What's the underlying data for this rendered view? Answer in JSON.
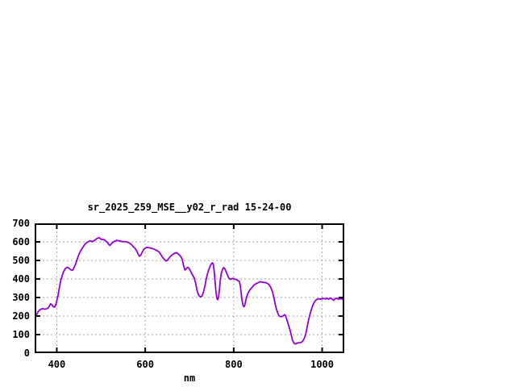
{
  "window": {
    "background_color": "#ffffff"
  },
  "chart_data": {
    "type": "line",
    "title": "sr_2025_259_MSE__y02_r_rad 15-24-00",
    "xlabel": "nm",
    "ylabel": "",
    "xlim": [
      350,
      1050
    ],
    "ylim": [
      0,
      700
    ],
    "x_ticks": [
      400,
      600,
      800,
      1000
    ],
    "y_ticks": [
      0,
      100,
      200,
      300,
      400,
      500,
      600,
      700
    ],
    "grid": true,
    "grid_style": "dashed",
    "legend_position": "none",
    "line_color": "#9400d3",
    "grid_color": "#a6a6a6",
    "border_color": "#000000",
    "text_color": "#000000",
    "series": [
      {
        "name": "sr_2025_259_MSE__y02_r_rad",
        "points": [
          [
            350,
            190
          ],
          [
            353,
            201
          ],
          [
            356,
            216
          ],
          [
            359,
            227
          ],
          [
            362,
            234
          ],
          [
            365,
            238
          ],
          [
            368,
            240
          ],
          [
            371,
            238
          ],
          [
            374,
            237
          ],
          [
            377,
            240
          ],
          [
            380,
            243
          ],
          [
            383,
            253
          ],
          [
            386,
            266
          ],
          [
            389,
            261
          ],
          [
            392,
            251
          ],
          [
            395,
            248
          ],
          [
            398,
            262
          ],
          [
            400,
            282
          ],
          [
            403,
            312
          ],
          [
            406,
            355
          ],
          [
            409,
            392
          ],
          [
            412,
            416
          ],
          [
            415,
            438
          ],
          [
            418,
            451
          ],
          [
            421,
            460
          ],
          [
            424,
            463
          ],
          [
            427,
            459
          ],
          [
            430,
            452
          ],
          [
            433,
            448
          ],
          [
            436,
            448
          ],
          [
            439,
            461
          ],
          [
            442,
            478
          ],
          [
            445,
            497
          ],
          [
            448,
            520
          ],
          [
            451,
            538
          ],
          [
            454,
            552
          ],
          [
            457,
            563
          ],
          [
            460,
            575
          ],
          [
            463,
            585
          ],
          [
            466,
            592
          ],
          [
            469,
            598
          ],
          [
            472,
            602
          ],
          [
            475,
            606
          ],
          [
            478,
            604
          ],
          [
            481,
            601
          ],
          [
            484,
            606
          ],
          [
            487,
            611
          ],
          [
            490,
            617
          ],
          [
            493,
            621
          ],
          [
            496,
            622
          ],
          [
            499,
            617
          ],
          [
            502,
            612
          ],
          [
            505,
            614
          ],
          [
            508,
            610
          ],
          [
            511,
            604
          ],
          [
            514,
            598
          ],
          [
            517,
            588
          ],
          [
            520,
            581
          ],
          [
            523,
            589
          ],
          [
            526,
            596
          ],
          [
            529,
            601
          ],
          [
            532,
            605
          ],
          [
            535,
            608
          ],
          [
            538,
            607
          ],
          [
            541,
            605
          ],
          [
            545,
            603
          ],
          [
            549,
            601
          ],
          [
            553,
            602
          ],
          [
            557,
            600
          ],
          [
            561,
            597
          ],
          [
            565,
            593
          ],
          [
            569,
            585
          ],
          [
            573,
            574
          ],
          [
            577,
            565
          ],
          [
            581,
            550
          ],
          [
            584,
            533
          ],
          [
            587,
            522
          ],
          [
            590,
            529
          ],
          [
            593,
            543
          ],
          [
            596,
            557
          ],
          [
            600,
            566
          ],
          [
            604,
            571
          ],
          [
            608,
            569
          ],
          [
            612,
            566
          ],
          [
            616,
            564
          ],
          [
            620,
            561
          ],
          [
            624,
            556
          ],
          [
            628,
            551
          ],
          [
            632,
            544
          ],
          [
            636,
            529
          ],
          [
            640,
            514
          ],
          [
            644,
            504
          ],
          [
            647,
            497
          ],
          [
            650,
            501
          ],
          [
            654,
            513
          ],
          [
            658,
            525
          ],
          [
            662,
            532
          ],
          [
            666,
            538
          ],
          [
            670,
            542
          ],
          [
            674,
            536
          ],
          [
            678,
            527
          ],
          [
            681,
            519
          ],
          [
            684,
            503
          ],
          [
            687,
            468
          ],
          [
            690,
            448
          ],
          [
            693,
            456
          ],
          [
            696,
            463
          ],
          [
            699,
            457
          ],
          [
            702,
            444
          ],
          [
            705,
            430
          ],
          [
            708,
            417
          ],
          [
            711,
            404
          ],
          [
            714,
            377
          ],
          [
            717,
            340
          ],
          [
            720,
            316
          ],
          [
            723,
            306
          ],
          [
            726,
            304
          ],
          [
            729,
            310
          ],
          [
            732,
            333
          ],
          [
            735,
            362
          ],
          [
            738,
            400
          ],
          [
            741,
            430
          ],
          [
            744,
            452
          ],
          [
            747,
            471
          ],
          [
            750,
            483
          ],
          [
            752,
            487
          ],
          [
            754,
            478
          ],
          [
            756,
            440
          ],
          [
            758,
            385
          ],
          [
            760,
            330
          ],
          [
            762,
            296
          ],
          [
            764,
            288
          ],
          [
            766,
            305
          ],
          [
            768,
            350
          ],
          [
            770,
            400
          ],
          [
            772,
            430
          ],
          [
            774,
            448
          ],
          [
            777,
            461
          ],
          [
            780,
            455
          ],
          [
            783,
            439
          ],
          [
            786,
            420
          ],
          [
            789,
            406
          ],
          [
            792,
            398
          ],
          [
            795,
            400
          ],
          [
            798,
            403
          ],
          [
            801,
            400
          ],
          [
            804,
            398
          ],
          [
            807,
            396
          ],
          [
            810,
            391
          ],
          [
            813,
            385
          ],
          [
            815,
            362
          ],
          [
            817,
            322
          ],
          [
            819,
            282
          ],
          [
            821,
            259
          ],
          [
            823,
            250
          ],
          [
            825,
            258
          ],
          [
            828,
            291
          ],
          [
            831,
            316
          ],
          [
            834,
            331
          ],
          [
            837,
            342
          ],
          [
            840,
            351
          ],
          [
            844,
            362
          ],
          [
            848,
            371
          ],
          [
            852,
            376
          ],
          [
            856,
            381
          ],
          [
            860,
            385
          ],
          [
            864,
            383
          ],
          [
            868,
            381
          ],
          [
            872,
            380
          ],
          [
            876,
            377
          ],
          [
            880,
            369
          ],
          [
            884,
            354
          ],
          [
            888,
            328
          ],
          [
            891,
            299
          ],
          [
            894,
            262
          ],
          [
            897,
            234
          ],
          [
            900,
            214
          ],
          [
            903,
            200
          ],
          [
            906,
            196
          ],
          [
            909,
            198
          ],
          [
            912,
            201
          ],
          [
            915,
            208
          ],
          [
            917,
            203
          ],
          [
            919,
            190
          ],
          [
            921,
            175
          ],
          [
            924,
            151
          ],
          [
            927,
            128
          ],
          [
            930,
            99
          ],
          [
            933,
            70
          ],
          [
            936,
            55
          ],
          [
            939,
            49
          ],
          [
            942,
            52
          ],
          [
            945,
            55
          ],
          [
            948,
            56
          ],
          [
            951,
            57
          ],
          [
            954,
            60
          ],
          [
            957,
            68
          ],
          [
            960,
            82
          ],
          [
            963,
            105
          ],
          [
            966,
            140
          ],
          [
            969,
            176
          ],
          [
            972,
            206
          ],
          [
            975,
            231
          ],
          [
            978,
            252
          ],
          [
            981,
            269
          ],
          [
            984,
            281
          ],
          [
            987,
            288
          ],
          [
            990,
            292
          ],
          [
            993,
            293
          ],
          [
            996,
            291
          ],
          [
            999,
            293
          ],
          [
            1002,
            295
          ],
          [
            1005,
            294
          ],
          [
            1008,
            292
          ],
          [
            1011,
            296
          ],
          [
            1014,
            291
          ],
          [
            1017,
            294
          ],
          [
            1020,
            297
          ],
          [
            1023,
            291
          ],
          [
            1026,
            285
          ],
          [
            1029,
            293
          ],
          [
            1032,
            296
          ],
          [
            1035,
            293
          ],
          [
            1038,
            291
          ],
          [
            1041,
            295
          ],
          [
            1044,
            292
          ],
          [
            1047,
            290
          ],
          [
            1050,
            293
          ]
        ]
      }
    ]
  }
}
